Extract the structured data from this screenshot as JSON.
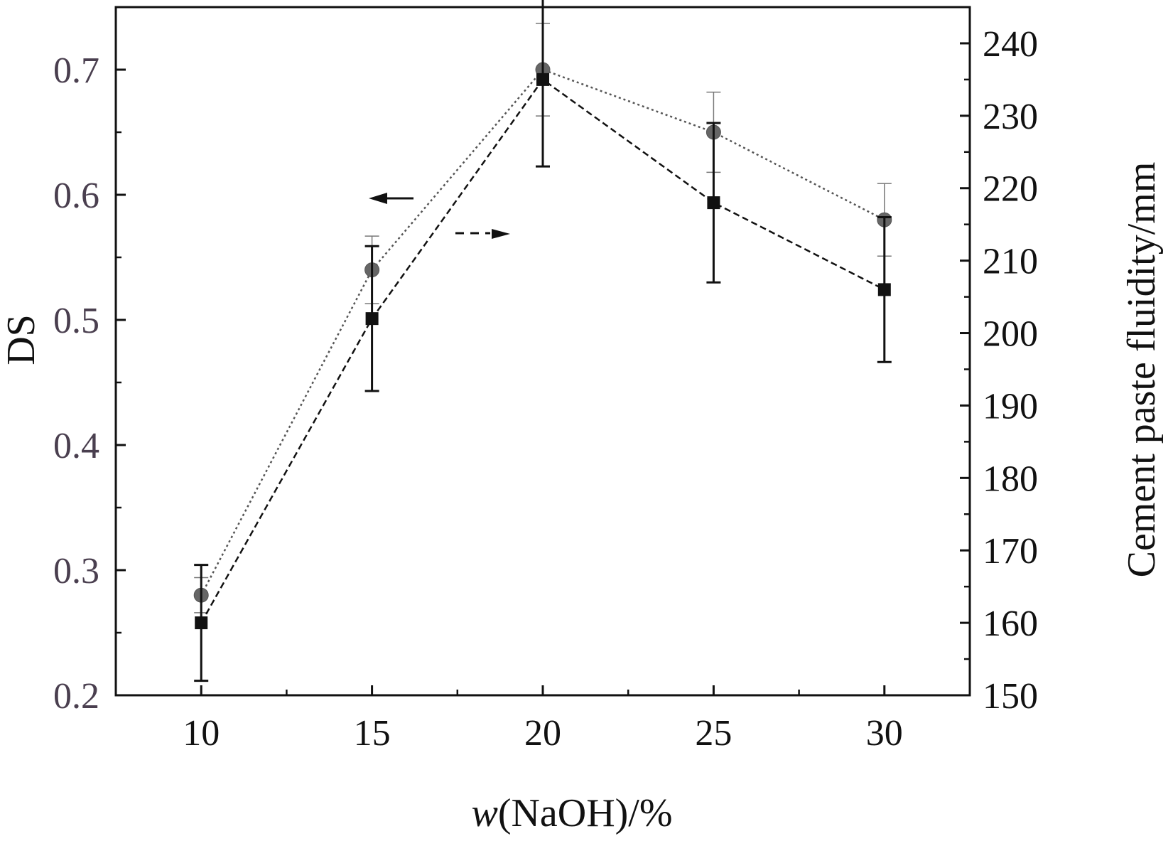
{
  "chart_data": {
    "type": "line",
    "xlabel_italic": "w",
    "xlabel_rest": "(NaOH)/%",
    "ylabel_left": "DS",
    "ylabel_right": "Cement paste fluidity/mm",
    "x": [
      10,
      15,
      20,
      25,
      30
    ],
    "x_ticks": [
      "10",
      "15",
      "20",
      "25",
      "30"
    ],
    "xlim": [
      7.5,
      32.5
    ],
    "ylim_left": [
      0.2,
      0.75
    ],
    "ylim_right": [
      150,
      245
    ],
    "y_ticks_left": [
      "0.2",
      "0.3",
      "0.4",
      "0.5",
      "0.6",
      "0.7"
    ],
    "y_ticks_right": [
      "150",
      "160",
      "170",
      "180",
      "190",
      "200",
      "210",
      "220",
      "230",
      "240"
    ],
    "grid": false,
    "series": [
      {
        "axis": "left",
        "marker": "circle",
        "line_style": "dotted",
        "color": "#555555",
        "values": [
          0.28,
          0.54,
          0.7,
          0.65,
          0.58
        ],
        "error": [
          0.014,
          0.027,
          0.037,
          0.032,
          0.029
        ]
      },
      {
        "axis": "right",
        "marker": "square",
        "line_style": "dashed",
        "color": "#111111",
        "values": [
          160,
          202,
          235,
          218,
          206
        ],
        "error": [
          8,
          10,
          12,
          11,
          10
        ]
      }
    ],
    "annotations": [
      {
        "type": "arrow",
        "direction": "left",
        "points_to": "DS"
      },
      {
        "type": "arrow",
        "direction": "right",
        "points_to": "Cement paste fluidity/mm"
      }
    ]
  }
}
